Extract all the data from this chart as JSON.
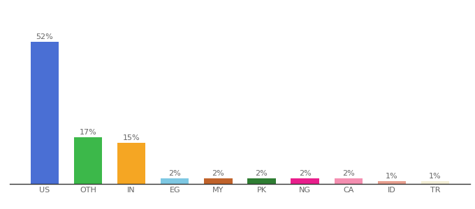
{
  "categories": [
    "US",
    "OTH",
    "IN",
    "EG",
    "MY",
    "PK",
    "NG",
    "CA",
    "ID",
    "TR"
  ],
  "values": [
    52,
    17,
    15,
    2,
    2,
    2,
    2,
    2,
    1,
    1
  ],
  "labels": [
    "52%",
    "17%",
    "15%",
    "2%",
    "2%",
    "2%",
    "2%",
    "2%",
    "1%",
    "1%"
  ],
  "bar_colors": [
    "#4a6fd4",
    "#3cb84a",
    "#f5a623",
    "#7ec8e3",
    "#c0622a",
    "#2e7d32",
    "#e91e8c",
    "#f48fb1",
    "#e8a090",
    "#f5f0d8"
  ],
  "ylim": [
    0,
    58
  ],
  "background_color": "#ffffff",
  "label_fontsize": 8,
  "xtick_fontsize": 8,
  "bar_width": 0.65
}
